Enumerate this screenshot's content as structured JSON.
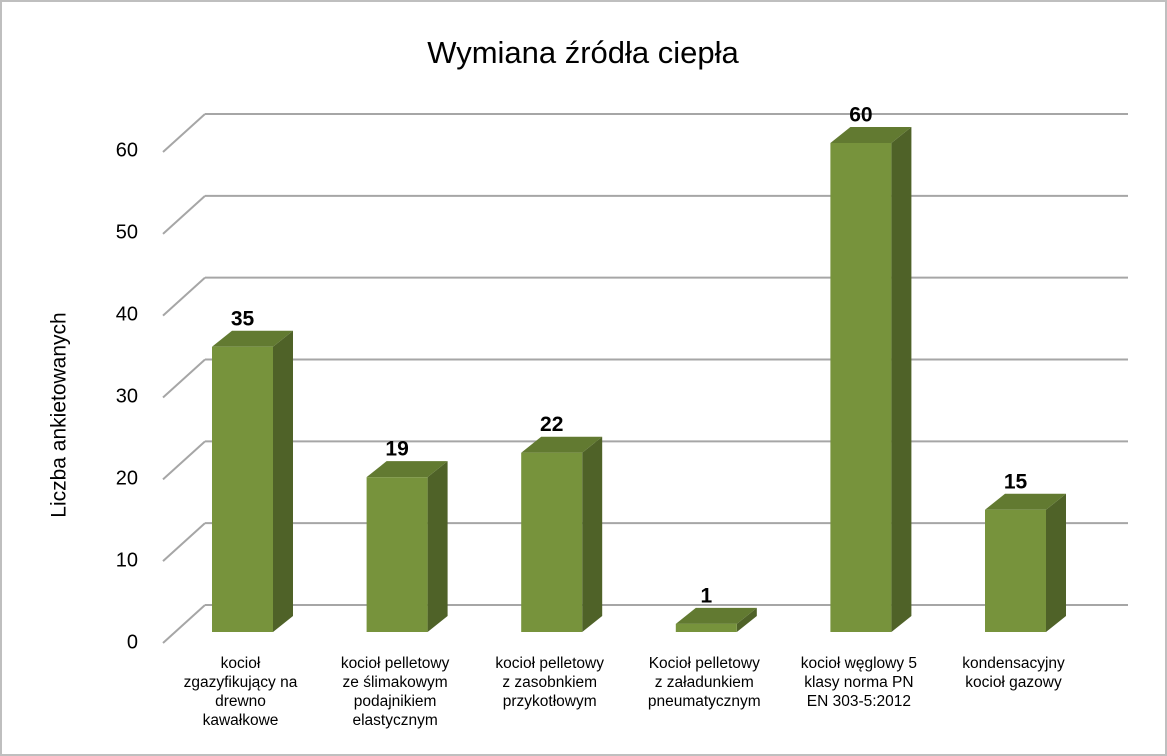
{
  "chart_data": {
    "type": "bar3d",
    "title": "Wymiana źródła ciepła",
    "y_axis_label": "Liczba ankietowanych",
    "categories": [
      [
        "kocioł",
        "zgazyfikujący na",
        "drewno",
        "kawałkowe"
      ],
      [
        "kocioł pelletowy",
        "ze ślimakowym",
        "podajnikiem",
        "elastycznym"
      ],
      [
        "kocioł pelletowy",
        "z zasobnkiem",
        "przykotłowym"
      ],
      [
        "Kocioł pelletowy",
        "z załadunkiem",
        "pneumatycznym"
      ],
      [
        "kocioł węglowy 5",
        "klasy norma PN",
        "EN 303-5:2012"
      ],
      [
        "kondensacyjny",
        "kocioł gazowy"
      ]
    ],
    "values": [
      35,
      19,
      22,
      1,
      60,
      15
    ],
    "color": "#77933c",
    "ylim": [
      0,
      60
    ],
    "yticks": [
      0,
      10,
      20,
      30,
      40,
      50,
      60
    ],
    "grid": true
  }
}
